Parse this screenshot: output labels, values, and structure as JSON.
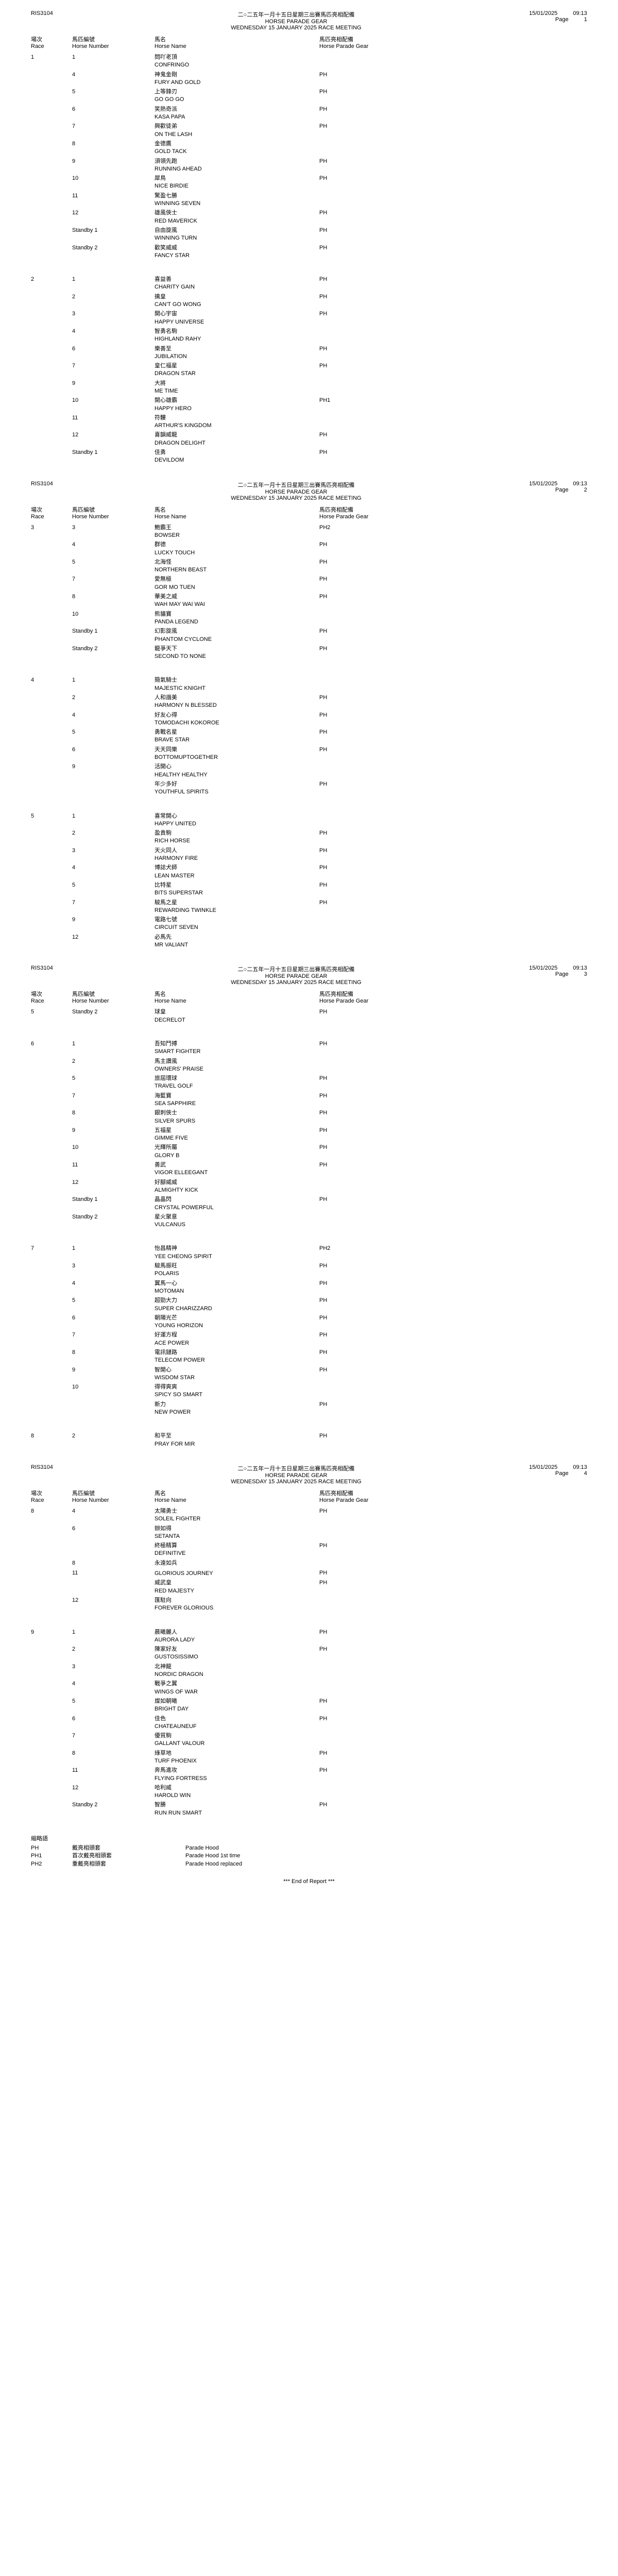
{
  "report_id": "RIS3104",
  "date": "15/01/2025",
  "time": "09:13",
  "page_label": "Page",
  "title_cn": "二○二五年一月十五日星期三出賽馬匹亮相配備",
  "title_en": "HORSE PARADE GEAR",
  "meeting_line": "WEDNESDAY 15 JANUARY 2025 RACE MEETING",
  "headers": {
    "race_cn": "場次",
    "race_en": "Race",
    "hn_cn": "馬匹編號",
    "hn_en": "Horse Number",
    "name_cn": "馬名",
    "name_en": "Horse Name",
    "gear_cn": "馬匹亮相配備",
    "gear_en": "Horse Parade Gear"
  },
  "pages": [
    {
      "page_num": 1,
      "races": [
        {
          "race": "1",
          "entries": [
            {
              "hn": "1",
              "cn": "問吖老頂",
              "en": "CONFRINGO",
              "gear": ""
            },
            {
              "hn": "4",
              "cn": "神鬼金剛",
              "en": "FURY AND GOLD",
              "gear": "PH"
            },
            {
              "hn": "5",
              "cn": "上等鋒刃",
              "en": "GO GO GO",
              "gear": "PH"
            },
            {
              "hn": "6",
              "cn": "笑熱奇派",
              "en": "KASA PAPA",
              "gear": "PH"
            },
            {
              "hn": "7",
              "cn": "興歡徒弟",
              "en": "ON THE LASH",
              "gear": "PH"
            },
            {
              "hn": "8",
              "cn": "金德鷹",
              "en": "GOLD TACK",
              "gear": ""
            },
            {
              "hn": "9",
              "cn": "須領先跑",
              "en": "RUNNING AHEAD",
              "gear": "PH"
            },
            {
              "hn": "10",
              "cn": "犀鳥",
              "en": "NICE BIRDIE",
              "gear": "PH"
            },
            {
              "hn": "11",
              "cn": "驚盈七勝",
              "en": "WINNING SEVEN",
              "gear": ""
            },
            {
              "hn": "12",
              "cn": "雄風俠士",
              "en": "RED MAVERICK",
              "gear": "PH"
            },
            {
              "hn": "Standby 1",
              "cn": "自由旋風",
              "en": "WINNING TURN",
              "gear": "PH"
            },
            {
              "hn": "Standby 2",
              "cn": "歡笑威威",
              "en": "FANCY STAR",
              "gear": "PH"
            }
          ]
        },
        {
          "race": "2",
          "entries": [
            {
              "hn": "1",
              "cn": "喜益善",
              "en": "CHARITY GAIN",
              "gear": "PH"
            },
            {
              "hn": "2",
              "cn": "擒皇",
              "en": "CAN'T GO WONG",
              "gear": "PH"
            },
            {
              "hn": "3",
              "cn": "開心宇宙",
              "en": "HAPPY UNIVERSE",
              "gear": "PH"
            },
            {
              "hn": "4",
              "cn": "智勇名駒",
              "en": "HIGHLAND RAHY",
              "gear": ""
            },
            {
              "hn": "6",
              "cn": "樂善至",
              "en": "JUBILATION",
              "gear": "PH"
            },
            {
              "hn": "7",
              "cn": "皇仁福星",
              "en": "DRAGON STAR",
              "gear": "PH"
            },
            {
              "hn": "9",
              "cn": "大將",
              "en": "ME TIME",
              "gear": ""
            },
            {
              "hn": "10",
              "cn": "開心雄霸",
              "en": "HAPPY HERO",
              "gear": "PH1"
            },
            {
              "hn": "11",
              "cn": "符髏",
              "en": "ARTHUR'S KINGDOM",
              "gear": ""
            },
            {
              "hn": "12",
              "cn": "喜韻威龍",
              "en": "DRAGON DELIGHT",
              "gear": "PH"
            },
            {
              "hn": "Standby 1",
              "cn": "佳勇",
              "en": "DEVILDOM",
              "gear": "PH"
            }
          ]
        }
      ]
    },
    {
      "page_num": 2,
      "races": [
        {
          "race": "3",
          "entries": [
            {
              "hn": "3",
              "cn": "鮑霸王",
              "en": "BOWSER",
              "gear": "PH2"
            },
            {
              "hn": "4",
              "cn": "群德",
              "en": "LUCKY TOUCH",
              "gear": "PH"
            },
            {
              "hn": "5",
              "cn": "北海怪",
              "en": "NORTHERN BEAST",
              "gear": "PH"
            },
            {
              "hn": "7",
              "cn": "愛無極",
              "en": "GOR MO TUEN",
              "gear": "PH"
            },
            {
              "hn": "8",
              "cn": "華美之威",
              "en": "WAH MAY WAI WAI",
              "gear": "PH"
            },
            {
              "hn": "10",
              "cn": "熊貓寶",
              "en": "PANDA LEGEND",
              "gear": ""
            },
            {
              "hn": "Standby 1",
              "cn": "幻影旋風",
              "en": "PHANTOM CYCLONE",
              "gear": "PH"
            },
            {
              "hn": "Standby 2",
              "cn": "龍爭天下",
              "en": "SECOND TO NONE",
              "gear": "PH"
            }
          ]
        },
        {
          "race": "4",
          "entries": [
            {
              "hn": "1",
              "cn": "簡氣騎士",
              "en": "MAJESTIC KNIGHT",
              "gear": ""
            },
            {
              "hn": "2",
              "cn": "人和諧美",
              "en": "HARMONY N BLESSED",
              "gear": "PH"
            },
            {
              "hn": "4",
              "cn": "好友心得",
              "en": "TOMODACHI KOKOROE",
              "gear": "PH"
            },
            {
              "hn": "5",
              "cn": "勇戰名星",
              "en": "BRAVE STAR",
              "gear": "PH"
            },
            {
              "hn": "6",
              "cn": "天天同樂",
              "en": "BOTTOMUPTOGETHER",
              "gear": "PH"
            },
            {
              "hn": "9",
              "cn": "活開心",
              "en": "HEALTHY HEALTHY",
              "gear": ""
            },
            {
              "hn": "",
              "cn": "年少多好",
              "en": "YOUTHFUL SPIRITS",
              "gear": "PH"
            }
          ]
        },
        {
          "race": "5",
          "entries": [
            {
              "hn": "1",
              "cn": "喜常開心",
              "en": "HAPPY UNITED",
              "gear": ""
            },
            {
              "hn": "2",
              "cn": "盈貴駒",
              "en": "RICH HORSE",
              "gear": "PH"
            },
            {
              "hn": "3",
              "cn": "天火同人",
              "en": "HARMONY FIRE",
              "gear": "PH"
            },
            {
              "hn": "4",
              "cn": "博誌犬師",
              "en": "LEAN MASTER",
              "gear": "PH"
            },
            {
              "hn": "5",
              "cn": "比特星",
              "en": "BITS SUPERSTAR",
              "gear": "PH"
            },
            {
              "hn": "7",
              "cn": "駿馬之星",
              "en": "REWARDING TWINKLE",
              "gear": "PH"
            },
            {
              "hn": "9",
              "cn": "電路七號",
              "en": "CIRCUIT SEVEN",
              "gear": ""
            },
            {
              "hn": "12",
              "cn": "必馬先",
              "en": "MR VALIANT",
              "gear": ""
            }
          ]
        }
      ]
    },
    {
      "page_num": 3,
      "races": [
        {
          "race": "5",
          "entries": [
            {
              "hn": "Standby 2",
              "cn": "球皇",
              "en": "DECRELOT",
              "gear": "PH"
            }
          ]
        },
        {
          "race": "6",
          "entries": [
            {
              "hn": "1",
              "cn": "吾知鬥搏",
              "en": "SMART FIGHTER",
              "gear": "PH"
            },
            {
              "hn": "2",
              "cn": "馬主讚風",
              "en": "OWNERS' PRAISE",
              "gear": ""
            },
            {
              "hn": "5",
              "cn": "旅屆環球",
              "en": "TRAVEL GOLF",
              "gear": "PH"
            },
            {
              "hn": "7",
              "cn": "海藍寶",
              "en": "SEA SAPPHIRE",
              "gear": "PH"
            },
            {
              "hn": "8",
              "cn": "銀刺俠士",
              "en": "SILVER SPURS",
              "gear": "PH"
            },
            {
              "hn": "9",
              "cn": "五福星",
              "en": "GIMME FIVE",
              "gear": "PH"
            },
            {
              "hn": "10",
              "cn": "光輝所屬",
              "en": "GLORY B",
              "gear": "PH"
            },
            {
              "hn": "11",
              "cn": "善武",
              "en": "VIGOR ELLEEGANT",
              "gear": "PH"
            },
            {
              "hn": "12",
              "cn": "好腳威威",
              "en": "ALMIGHTY KICK",
              "gear": ""
            },
            {
              "hn": "Standby 1",
              "cn": "晶晶閃",
              "en": "CRYSTAL POWERFUL",
              "gear": "PH"
            },
            {
              "hn": "Standby 2",
              "cn": "星火聚意",
              "en": "VULCANUS",
              "gear": ""
            }
          ]
        },
        {
          "race": "7",
          "entries": [
            {
              "hn": "1",
              "cn": "怡昌精神",
              "en": "YEE CHEONG SPIRIT",
              "gear": "PH2"
            },
            {
              "hn": "3",
              "cn": "駿馬振旺",
              "en": "POLARIS",
              "gear": "PH"
            },
            {
              "hn": "4",
              "cn": "翼馬一心",
              "en": "MOTOMAN",
              "gear": "PH"
            },
            {
              "hn": "5",
              "cn": "超勁大力",
              "en": "SUPER CHARIZZARD",
              "gear": "PH"
            },
            {
              "hn": "6",
              "cn": "朝陽光芒",
              "en": "YOUNG HORIZON",
              "gear": "PH"
            },
            {
              "hn": "7",
              "cn": "好運方程",
              "en": "ACE POWER",
              "gear": "PH"
            },
            {
              "hn": "8",
              "cn": "電訊鏈路",
              "en": "TELECOM POWER",
              "gear": "PH"
            },
            {
              "hn": "9",
              "cn": "智開心",
              "en": "WISDOM STAR",
              "gear": "PH"
            },
            {
              "hn": "10",
              "cn": "得得爽爽",
              "en": "SPICY SO SMART",
              "gear": ""
            },
            {
              "hn": "",
              "cn": "新力",
              "en": "NEW POWER",
              "gear": "PH"
            }
          ]
        },
        {
          "race": "8",
          "entries": [
            {
              "hn": "2",
              "cn": "和平至",
              "en": "PRAY FOR MIR",
              "gear": "PH"
            }
          ]
        }
      ]
    },
    {
      "page_num": 4,
      "races": [
        {
          "race": "8",
          "entries": [
            {
              "hn": "4",
              "cn": "太陽勇士",
              "en": "SOLEIL FIGHTER",
              "gear": "PH"
            },
            {
              "hn": "6",
              "cn": "辦如得",
              "en": "SETANTA",
              "gear": ""
            },
            {
              "hn": "",
              "cn": "終極精算",
              "en": "DEFINITIVE",
              "gear": "PH"
            },
            {
              "hn": "8",
              "cn": "永遠如兵",
              "en": "",
              "gear": ""
            },
            {
              "hn": "11",
              "cn": "",
              "en": "GLORIOUS JOURNEY",
              "gear": "PH"
            },
            {
              "hn": "",
              "cn": "威武皇",
              "en": "RED MAJESTY",
              "gear": "PH"
            },
            {
              "hn": "12",
              "cn": "匯駐向",
              "en": "FOREVER GLORIOUS",
              "gear": ""
            }
          ]
        },
        {
          "race": "9",
          "entries": [
            {
              "hn": "1",
              "cn": "晨曦麗人",
              "en": "AURORA LADY",
              "gear": "PH"
            },
            {
              "hn": "2",
              "cn": "陳家好友",
              "en": "GUSTOSISSIMO",
              "gear": "PH"
            },
            {
              "hn": "3",
              "cn": "北神龍",
              "en": "NORDIC DRAGON",
              "gear": ""
            },
            {
              "hn": "4",
              "cn": "戰爭之翼",
              "en": "WINGS OF WAR",
              "gear": ""
            },
            {
              "hn": "5",
              "cn": "燦如朝曦",
              "en": "BRIGHT DAY",
              "gear": "PH"
            },
            {
              "hn": "6",
              "cn": "佳色",
              "en": "CHATEAUNEUF",
              "gear": "PH"
            },
            {
              "hn": "7",
              "cn": "優質駒",
              "en": "GALLANT VALOUR",
              "gear": ""
            },
            {
              "hn": "8",
              "cn": "綠草地",
              "en": "TURF PHOENIX",
              "gear": "PH"
            },
            {
              "hn": "11",
              "cn": "奔馬進攻",
              "en": "FLYING FORTRESS",
              "gear": "PH"
            },
            {
              "hn": "12",
              "cn": "哈利威",
              "en": "HAROLD WIN",
              "gear": ""
            },
            {
              "hn": "Standby 2",
              "cn": "智勝",
              "en": "RUN RUN SMART",
              "gear": "PH"
            }
          ]
        }
      ]
    }
  ],
  "abbrev": {
    "title_cn": "縮略語",
    "title_en": "Abbreviations",
    "rows": [
      {
        "code": "PH",
        "cn": "戴亮相頭套",
        "en": "Parade Hood"
      },
      {
        "code": "PH1",
        "cn": "首次戴亮相頭套",
        "en": "Parade Hood 1st time"
      },
      {
        "code": "PH2",
        "cn": "重戴亮相頭套",
        "en": "Parade Hood replaced"
      }
    ]
  },
  "end_report": "***   End of Report   ***"
}
